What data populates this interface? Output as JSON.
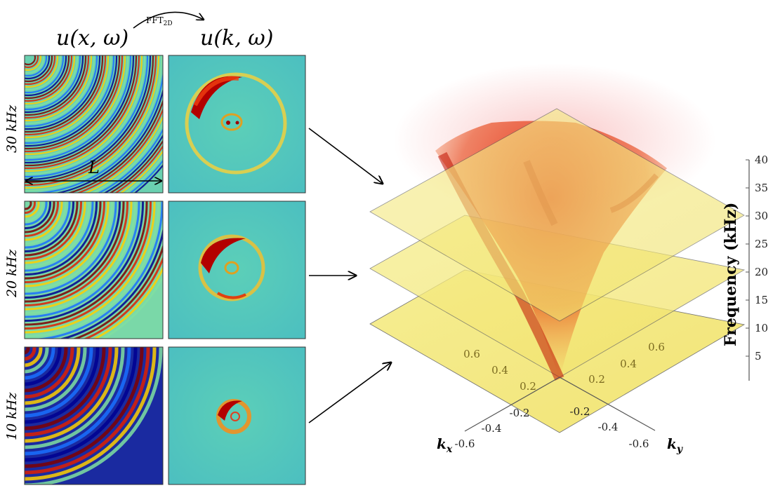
{
  "header": {
    "left_title": "u(x, ω)",
    "right_title": "u(k, ω)",
    "transform_label": "FFT",
    "transform_subscript": "2D"
  },
  "rows": [
    {
      "freq_label": "30 kHz"
    },
    {
      "freq_label": "20 kHz"
    },
    {
      "freq_label": "10 kHz"
    }
  ],
  "length_label": "L",
  "axes3d": {
    "z_label": "Frequency (kHz)",
    "z_ticks": [
      "5",
      "10",
      "15",
      "20",
      "25",
      "30",
      "35",
      "40"
    ],
    "kx_label": "k",
    "kx_sub": "x",
    "ky_label": "k",
    "ky_sub": "y",
    "kx_ticks": [
      "-0.6",
      "-0.4",
      "-0.2",
      "0.2",
      "0.4",
      "0.6"
    ],
    "ky_ticks": [
      "-0.6",
      "-0.4",
      "-0.2",
      "0.2",
      "0.4",
      "0.6"
    ]
  },
  "colors": {
    "plane": "#f3ea7a",
    "cone": "#d81b08",
    "jet_bg": "#52c7b8"
  }
}
